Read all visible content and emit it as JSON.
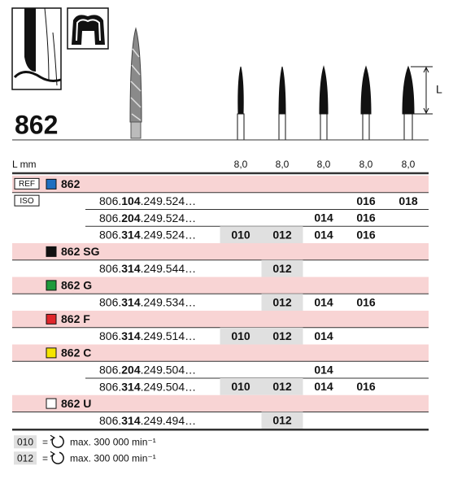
{
  "header": {
    "code": "862",
    "dimension_label": "L",
    "length_label": "L mm",
    "lengths": [
      "8,0",
      "8,0",
      "8,0",
      "8,0",
      "8,0"
    ]
  },
  "ref_label": "REF",
  "iso_label": "ISO",
  "groups": [
    {
      "name": "862",
      "color": "#1e6fc0",
      "rows": [
        {
          "prefix": "806.",
          "bold": "104",
          "suffix": ".249.524…",
          "sizes": [
            null,
            null,
            null,
            "016",
            "018"
          ]
        },
        {
          "prefix": "806.",
          "bold": "204",
          "suffix": ".249.524…",
          "sizes": [
            null,
            null,
            "014",
            "016",
            null
          ]
        },
        {
          "prefix": "806.",
          "bold": "314",
          "suffix": ".249.524…",
          "sizes": [
            "010",
            "012",
            "014",
            "016",
            null
          ]
        }
      ]
    },
    {
      "name": "862 SG",
      "color": "#111111",
      "rows": [
        {
          "prefix": "806.",
          "bold": "314",
          "suffix": ".249.544…",
          "sizes": [
            null,
            "012",
            null,
            null,
            null
          ]
        }
      ]
    },
    {
      "name": "862 G",
      "color": "#1f9a3c",
      "rows": [
        {
          "prefix": "806.",
          "bold": "314",
          "suffix": ".249.534…",
          "sizes": [
            null,
            "012",
            "014",
            "016",
            null
          ]
        }
      ]
    },
    {
      "name": "862 F",
      "color": "#e0262b",
      "rows": [
        {
          "prefix": "806.",
          "bold": "314",
          "suffix": ".249.514…",
          "sizes": [
            "010",
            "012",
            "014",
            null,
            null
          ]
        }
      ]
    },
    {
      "name": "862 C",
      "color": "#f5e400",
      "rows": [
        {
          "prefix": "806.",
          "bold": "204",
          "suffix": ".249.504…",
          "sizes": [
            null,
            null,
            "014",
            null,
            null
          ]
        },
        {
          "prefix": "806.",
          "bold": "314",
          "suffix": ".249.504…",
          "sizes": [
            "010",
            "012",
            "014",
            "016",
            null
          ]
        }
      ]
    },
    {
      "name": "862 U",
      "color": "#ffffff",
      "rows": [
        {
          "prefix": "806.",
          "bold": "314",
          "suffix": ".249.494…",
          "sizes": [
            null,
            "012",
            null,
            null,
            null
          ]
        }
      ]
    }
  ],
  "legend": [
    {
      "code": "010",
      "sign": "=",
      "text": "max. 300 000 min⁻¹"
    },
    {
      "code": "012",
      "sign": "=",
      "text": "max. 300 000 min⁻¹"
    }
  ]
}
